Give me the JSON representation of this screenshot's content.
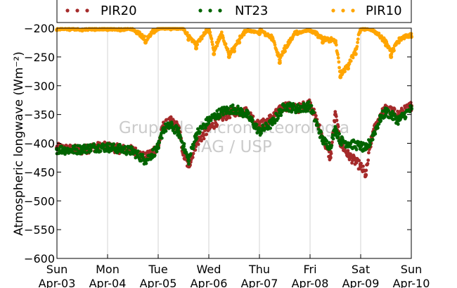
{
  "chart_data": {
    "type": "scatter",
    "title": "",
    "ylabel": "Atmospheric longwave",
    "ylabel_unit": "(Wm⁻²)",
    "ylim": [
      -600,
      -200
    ],
    "yticks": [
      -600,
      -550,
      -500,
      -450,
      -400,
      -350,
      -300,
      -250,
      -200
    ],
    "xlim": [
      "2016-04-03",
      "2016-04-10"
    ],
    "xticks": [
      {
        "day": "Sun",
        "date": "Apr-03"
      },
      {
        "day": "Mon",
        "date": "Apr-04"
      },
      {
        "day": "Tue",
        "date": "Apr-05"
      },
      {
        "day": "Wed",
        "date": "Apr-06"
      },
      {
        "day": "Thu",
        "date": "Apr-07"
      },
      {
        "day": "Fri",
        "date": "Apr-08"
      },
      {
        "day": "Sat",
        "date": "Apr-09"
      },
      {
        "day": "Sun",
        "date": "Apr-10"
      }
    ],
    "grid": "vertical",
    "legend_placement": "top",
    "watermark": [
      "Grupo de Micrometeorologia",
      "IAG / USP"
    ],
    "series": [
      {
        "name": "PIR20",
        "color": "#a52a2a",
        "x": [
          0.0,
          0.25,
          0.5,
          0.75,
          1.0,
          1.25,
          1.5,
          1.75,
          2.0,
          2.1,
          2.25,
          2.4,
          2.5,
          2.6,
          2.75,
          3.0,
          3.25,
          3.5,
          3.75,
          4.0,
          4.25,
          4.5,
          4.75,
          5.0,
          5.25,
          5.4,
          5.5,
          5.6,
          5.75,
          6.0,
          6.1,
          6.2,
          6.25,
          6.4,
          6.5,
          6.75,
          7.0
        ],
        "y": [
          -408,
          -410,
          -412,
          -406,
          -406,
          -410,
          -412,
          -425,
          -405,
          -370,
          -362,
          -372,
          -420,
          -440,
          -400,
          -375,
          -355,
          -345,
          -345,
          -370,
          -355,
          -335,
          -340,
          -330,
          -390,
          -425,
          -350,
          -400,
          -420,
          -440,
          -455,
          -400,
          -380,
          -350,
          -340,
          -350,
          -335
        ]
      },
      {
        "name": "NT23",
        "color": "#006400",
        "x": [
          0.0,
          0.25,
          0.5,
          0.75,
          1.0,
          1.25,
          1.5,
          1.75,
          2.0,
          2.1,
          2.25,
          2.4,
          2.5,
          2.6,
          2.75,
          3.0,
          3.25,
          3.5,
          3.75,
          4.0,
          4.25,
          4.5,
          4.75,
          5.0,
          5.25,
          5.4,
          5.5,
          5.6,
          5.75,
          6.0,
          6.1,
          6.2,
          6.25,
          6.4,
          6.5,
          6.75,
          7.0
        ],
        "y": [
          -410,
          -412,
          -410,
          -407,
          -407,
          -410,
          -414,
          -430,
          -408,
          -375,
          -370,
          -380,
          -405,
          -430,
          -385,
          -360,
          -345,
          -340,
          -350,
          -380,
          -365,
          -335,
          -340,
          -335,
          -395,
          -405,
          -375,
          -395,
          -400,
          -405,
          -410,
          -395,
          -385,
          -355,
          -345,
          -360,
          -340
        ]
      },
      {
        "name": "PIR10",
        "color": "#ffa500",
        "x": [
          0.0,
          0.25,
          0.5,
          0.75,
          1.0,
          1.25,
          1.5,
          1.75,
          2.0,
          2.25,
          2.5,
          2.6,
          2.75,
          3.0,
          3.1,
          3.25,
          3.4,
          3.5,
          3.6,
          3.75,
          4.0,
          4.25,
          4.4,
          4.5,
          4.75,
          5.0,
          5.25,
          5.5,
          5.6,
          5.75,
          5.9,
          6.0,
          6.25,
          6.5,
          6.6,
          6.75,
          7.0
        ],
        "y": [
          -203,
          -203,
          -204,
          -203,
          -203,
          -204,
          -203,
          -225,
          -202,
          -202,
          -202,
          -220,
          -235,
          -203,
          -245,
          -215,
          -250,
          -240,
          -225,
          -205,
          -210,
          -220,
          -260,
          -240,
          -210,
          -205,
          -225,
          -225,
          -285,
          -270,
          -245,
          -203,
          -205,
          -230,
          -250,
          -225,
          -215
        ]
      }
    ]
  }
}
